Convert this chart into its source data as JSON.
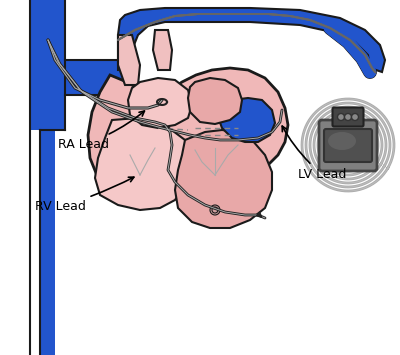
{
  "bg_color": "#ffffff",
  "blue": "#2255cc",
  "blue_dark": "#1133aa",
  "heart_fill": "#f0b8b8",
  "heart_light": "#f8d0d0",
  "heart_dark": "#d09090",
  "heart_outline": "#1a1a1a",
  "lv_fill": "#e8a8a8",
  "rv_fill": "#f5c8c8",
  "lead_color": "#222222",
  "label_ra": "RA Lead",
  "label_rv": "RV Lead",
  "label_lv": "LV Lead",
  "label_fontsize": 9,
  "pm_outer": "#c0c0c0",
  "pm_mid": "#999999",
  "pm_face": "#606060",
  "pm_header": "#444444"
}
